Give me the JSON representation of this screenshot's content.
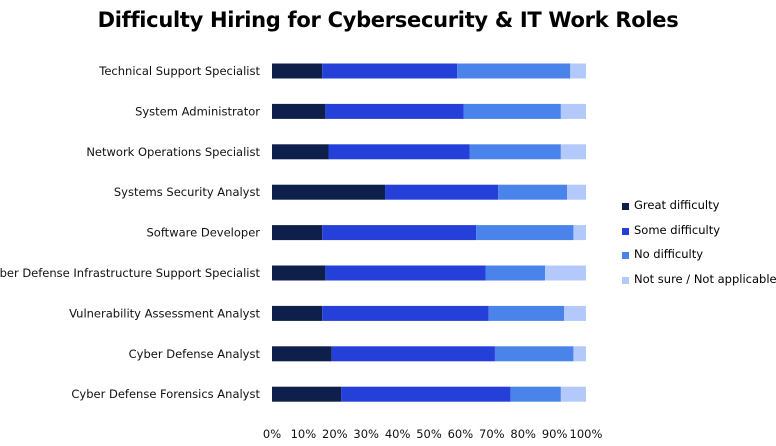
{
  "chart_data": {
    "type": "bar",
    "orientation": "horizontal",
    "stacked": true,
    "title": "Difficulty Hiring for Cybersecurity & IT Work Roles",
    "xlabel": "",
    "ylabel": "",
    "xlim": [
      0,
      100
    ],
    "x_ticks": [
      "0%",
      "10%",
      "20%",
      "30%",
      "40%",
      "50%",
      "60%",
      "70%",
      "80%",
      "90%",
      "100%"
    ],
    "grid": false,
    "legend_position": "right",
    "categories": [
      "Technical Support Specialist",
      "System Administrator",
      "Network Operations Specialist",
      "Systems Security Analyst",
      "Software Developer",
      "Cyber Defense Infrastructure Support Specialist",
      "Vulnerability Assessment Analyst",
      "Cyber Defense Analyst",
      "Cyber Defense Forensics Analyst"
    ],
    "series": [
      {
        "name": "Great difficulty",
        "color": "#0f1f4b",
        "values": [
          16,
          17,
          18,
          36,
          16,
          17,
          16,
          19,
          22
        ]
      },
      {
        "name": "Some difficulty",
        "color": "#2440d8",
        "values": [
          43,
          44,
          45,
          36,
          49,
          51,
          53,
          52,
          54
        ]
      },
      {
        "name": "No difficulty",
        "color": "#4a84ea",
        "values": [
          36,
          31,
          29,
          22,
          31,
          19,
          24,
          25,
          16
        ]
      },
      {
        "name": "Not sure / Not applicable",
        "color": "#b3c8fb",
        "values": [
          5,
          8,
          8,
          6,
          4,
          13,
          7,
          4,
          8
        ]
      }
    ]
  }
}
